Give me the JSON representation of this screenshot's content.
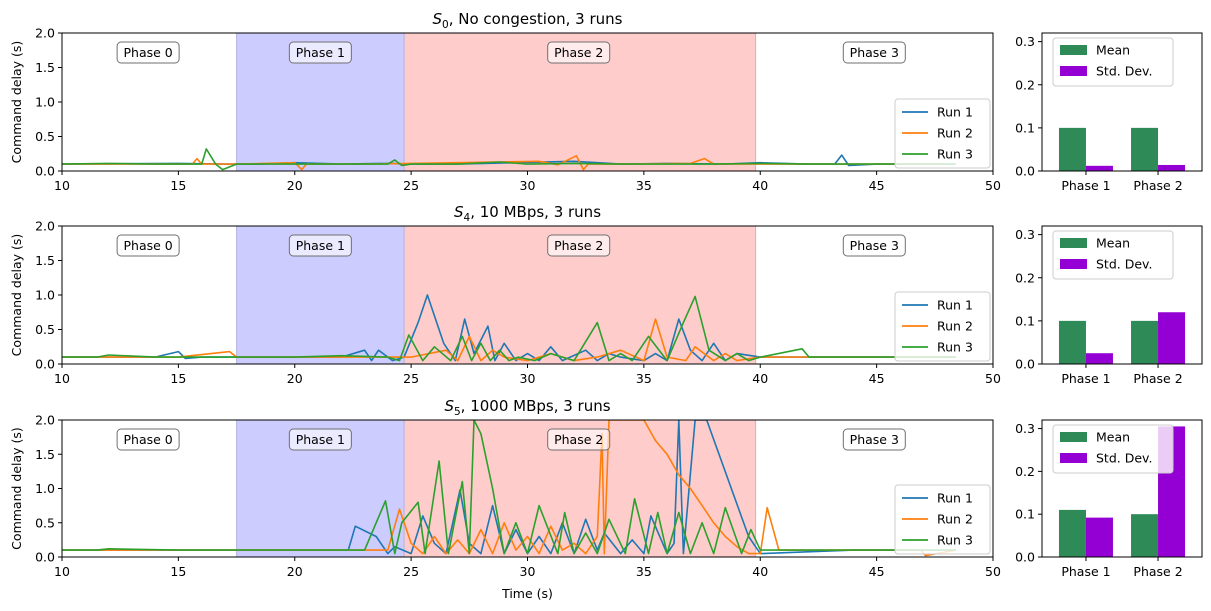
{
  "chart_data": [
    {
      "type": "line",
      "title_main": "S",
      "title_sub": "0",
      "title_rest": ", No congestion, 3 runs",
      "xlabel": "",
      "ylabel": "Command delay (s)",
      "xlim": [
        10,
        50
      ],
      "ylim": [
        0,
        2.0
      ],
      "xticks": [
        10,
        15,
        20,
        25,
        30,
        35,
        40,
        45,
        50
      ],
      "yticks": [
        0.0,
        0.5,
        1.0,
        1.5,
        2.0
      ],
      "phases": [
        {
          "label": "Phase 0",
          "start": 10,
          "end": 17.5,
          "color": "#ffffff",
          "label_x": 13.7
        },
        {
          "label": "Phase 1",
          "start": 17.5,
          "end": 24.7,
          "color": "#ccccff",
          "label_x": 21.1
        },
        {
          "label": "Phase 2",
          "start": 24.7,
          "end": 39.8,
          "color": "#ffcccc",
          "label_x": 32.2
        },
        {
          "label": "Phase 3",
          "start": 39.8,
          "end": 50,
          "color": "#ffffff",
          "label_x": 44.9
        }
      ],
      "legend_position": "lower-right",
      "series": [
        {
          "name": "Run 1",
          "color": "#1f77b4",
          "x": [
            10,
            15,
            17,
            18.5,
            20,
            22,
            24,
            25,
            27,
            29.5,
            32,
            34,
            36,
            38.5,
            40,
            42,
            43.2,
            43.5,
            43.8,
            45,
            46.5,
            48.4
          ],
          "y": [
            0.1,
            0.11,
            0.1,
            0.1,
            0.12,
            0.1,
            0.11,
            0.1,
            0.1,
            0.12,
            0.14,
            0.1,
            0.11,
            0.1,
            0.12,
            0.1,
            0.1,
            0.23,
            0.08,
            0.1,
            0.1,
            0.1
          ]
        },
        {
          "name": "Run 2",
          "color": "#ff7f0e",
          "x": [
            10,
            13,
            15.6,
            15.8,
            16,
            17.5,
            20,
            20.3,
            20.5,
            23,
            25,
            30.5,
            31.3,
            32.1,
            32.4,
            32.6,
            34,
            37,
            37.6,
            38,
            40,
            45,
            47.9
          ],
          "y": [
            0.1,
            0.1,
            0.1,
            0.18,
            0.1,
            0.1,
            0.12,
            0.02,
            0.1,
            0.1,
            0.11,
            0.14,
            0.09,
            0.22,
            0.02,
            0.1,
            0.1,
            0.11,
            0.18,
            0.1,
            0.1,
            0.1,
            0.1
          ]
        },
        {
          "name": "Run 3",
          "color": "#2ca02c",
          "x": [
            10,
            12,
            14,
            16,
            16.2,
            16.6,
            16.9,
            17.5,
            20,
            22,
            24,
            24.3,
            24.6,
            25,
            27,
            28.8,
            30,
            32,
            34,
            36,
            38,
            40,
            42,
            44,
            46,
            48.4
          ],
          "y": [
            0.1,
            0.11,
            0.1,
            0.1,
            0.32,
            0.1,
            0.02,
            0.1,
            0.1,
            0.1,
            0.1,
            0.16,
            0.08,
            0.1,
            0.1,
            0.13,
            0.1,
            0.11,
            0.1,
            0.1,
            0.1,
            0.11,
            0.1,
            0.1,
            0.1,
            0.1
          ]
        }
      ]
    },
    {
      "type": "line",
      "title_main": "S",
      "title_sub": "4",
      "title_rest": ", 10 MBps, 3 runs",
      "xlabel": "",
      "ylabel": "Command delay (s)",
      "xlim": [
        10,
        50
      ],
      "ylim": [
        0,
        2.0
      ],
      "xticks": [
        10,
        15,
        20,
        25,
        30,
        35,
        40,
        45,
        50
      ],
      "yticks": [
        0.0,
        0.5,
        1.0,
        1.5,
        2.0
      ],
      "phases": [
        {
          "label": "Phase 0",
          "start": 10,
          "end": 17.5,
          "color": "#ffffff",
          "label_x": 13.7
        },
        {
          "label": "Phase 1",
          "start": 17.5,
          "end": 24.7,
          "color": "#ccccff",
          "label_x": 21.1
        },
        {
          "label": "Phase 2",
          "start": 24.7,
          "end": 39.8,
          "color": "#ffcccc",
          "label_x": 32.2
        },
        {
          "label": "Phase 3",
          "start": 39.8,
          "end": 50,
          "color": "#ffffff",
          "label_x": 44.9
        }
      ],
      "legend_position": "lower-right",
      "series": [
        {
          "name": "Run 1",
          "color": "#1f77b4",
          "x": [
            10,
            14,
            15,
            15.3,
            16,
            18,
            22,
            23,
            23.3,
            23.6,
            24.2,
            24.7,
            25.3,
            25.7,
            26.4,
            26.9,
            27.3,
            27.7,
            28.3,
            28.6,
            29,
            29.5,
            30,
            30.5,
            31,
            31.5,
            32.5,
            33,
            33.5,
            34,
            35,
            35.5,
            36,
            36.5,
            37,
            37.5,
            38,
            38.5,
            39,
            40,
            44,
            48.4
          ],
          "y": [
            0.1,
            0.1,
            0.18,
            0.08,
            0.1,
            0.1,
            0.1,
            0.2,
            0.05,
            0.2,
            0.05,
            0.1,
            0.6,
            1.0,
            0.3,
            0.05,
            0.65,
            0.15,
            0.55,
            0.05,
            0.3,
            0.05,
            0.15,
            0.05,
            0.25,
            0.05,
            0.2,
            0.05,
            0.15,
            0.1,
            0.05,
            0.15,
            0.05,
            0.65,
            0.2,
            0.05,
            0.3,
            0.05,
            0.15,
            0.1,
            0.1,
            0.1
          ]
        },
        {
          "name": "Run 2",
          "color": "#ff7f0e",
          "x": [
            10,
            15,
            17.2,
            17.5,
            20,
            22,
            24,
            25,
            26.5,
            27,
            27.5,
            28,
            28.5,
            29,
            30,
            31,
            32,
            33,
            34,
            35,
            35.5,
            36,
            36.8,
            37.2,
            38,
            38.5,
            39,
            40,
            44,
            48.4
          ],
          "y": [
            0.1,
            0.1,
            0.18,
            0.1,
            0.1,
            0.1,
            0.1,
            0.1,
            0.2,
            0.05,
            0.4,
            0.05,
            0.2,
            0.1,
            0.05,
            0.15,
            0.05,
            0.1,
            0.2,
            0.05,
            0.65,
            0.1,
            0.05,
            0.25,
            0.05,
            0.15,
            0.05,
            0.1,
            0.1,
            0.1
          ]
        },
        {
          "name": "Run 3",
          "color": "#2ca02c",
          "x": [
            10,
            11.5,
            12,
            14,
            17.5,
            20,
            22,
            24,
            24.5,
            24.9,
            25.5,
            26,
            26.7,
            27.2,
            27.6,
            28,
            28.4,
            28.8,
            29.2,
            29.6,
            30.3,
            31,
            32,
            33,
            33.5,
            34,
            34.5,
            35.2,
            36,
            36.7,
            37.2,
            37.8,
            38.5,
            39,
            39.5,
            40,
            41.8,
            42.1,
            44,
            48.4
          ],
          "y": [
            0.1,
            0.1,
            0.13,
            0.1,
            0.1,
            0.1,
            0.12,
            0.1,
            0.05,
            0.42,
            0.05,
            0.25,
            0.05,
            0.4,
            0.05,
            0.3,
            0.05,
            0.2,
            0.05,
            0.1,
            0.05,
            0.15,
            0.05,
            0.6,
            0.05,
            0.15,
            0.05,
            0.4,
            0.05,
            0.6,
            0.98,
            0.2,
            0.05,
            0.15,
            0.05,
            0.1,
            0.22,
            0.1,
            0.1,
            0.1
          ]
        }
      ]
    },
    {
      "type": "line",
      "title_main": "S",
      "title_sub": "5",
      "title_rest": ", 1000 MBps, 3 runs",
      "xlabel": "Time (s)",
      "ylabel": "Command delay (s)",
      "xlim": [
        10,
        50
      ],
      "ylim": [
        0,
        2.0
      ],
      "xticks": [
        10,
        15,
        20,
        25,
        30,
        35,
        40,
        45,
        50
      ],
      "yticks": [
        0.0,
        0.5,
        1.0,
        1.5,
        2.0
      ],
      "phases": [
        {
          "label": "Phase 0",
          "start": 10,
          "end": 17.5,
          "color": "#ffffff",
          "label_x": 13.7
        },
        {
          "label": "Phase 1",
          "start": 17.5,
          "end": 24.7,
          "color": "#ccccff",
          "label_x": 21.1
        },
        {
          "label": "Phase 2",
          "start": 24.7,
          "end": 39.8,
          "color": "#ffcccc",
          "label_x": 32.2
        },
        {
          "label": "Phase 3",
          "start": 39.8,
          "end": 50,
          "color": "#ffffff",
          "label_x": 44.9
        }
      ],
      "legend_position": "lower-right",
      "series": [
        {
          "name": "Run 1",
          "color": "#1f77b4",
          "x": [
            10,
            15,
            20,
            22.3,
            22.6,
            23.5,
            24,
            24.3,
            25,
            25.5,
            26,
            26.5,
            27.1,
            27.5,
            28,
            28.5,
            29,
            29.5,
            30,
            30.5,
            31,
            31.5,
            32,
            32.5,
            33,
            33.3,
            34,
            34.5,
            35,
            35.3,
            36,
            36.3,
            36.5,
            36.7,
            37.2,
            37.7,
            39.5,
            40,
            44,
            48.4
          ],
          "y": [
            0.1,
            0.1,
            0.1,
            0.1,
            0.45,
            0.3,
            0.05,
            0.15,
            0.05,
            0.6,
            0.2,
            0.05,
            0.98,
            0.2,
            0.05,
            0.75,
            0.05,
            0.4,
            0.05,
            0.3,
            0.05,
            0.5,
            0.05,
            0.55,
            0.1,
            0.35,
            0.05,
            0.25,
            0.05,
            0.6,
            0.05,
            0.2,
            2.0,
            0.05,
            2.0,
            2.0,
            0.3,
            0.05,
            0.1,
            0.1
          ]
        },
        {
          "name": "Run 2",
          "color": "#ff7f0e",
          "x": [
            10,
            15,
            20,
            24,
            24.5,
            25,
            25.5,
            26,
            26.5,
            27,
            27.5,
            28,
            28.5,
            29,
            29.5,
            30,
            30.5,
            31,
            31.5,
            32,
            32.5,
            33,
            33.2,
            33.3,
            33.5,
            34,
            34.5,
            35,
            35.5,
            36,
            36.5,
            37,
            37.5,
            38,
            38.5,
            39,
            39.5,
            40,
            40.3,
            40.8,
            44,
            46.9,
            47.1,
            48.4
          ],
          "y": [
            0.1,
            0.1,
            0.1,
            0.1,
            0.7,
            0.2,
            0.05,
            0.3,
            0.05,
            0.25,
            0.05,
            0.4,
            0.05,
            0.5,
            0.1,
            0.3,
            0.05,
            0.45,
            0.1,
            0.2,
            0.05,
            0.3,
            1.8,
            0.05,
            2.0,
            2.0,
            2.0,
            2.0,
            1.7,
            1.5,
            1.2,
            1.0,
            0.75,
            0.5,
            0.3,
            0.15,
            0.05,
            0.05,
            0.72,
            0.1,
            0.1,
            0.1,
            0.02,
            0.1
          ]
        },
        {
          "name": "Run 3",
          "color": "#2ca02c",
          "x": [
            10,
            11.5,
            12,
            15,
            20,
            23,
            23.9,
            24.3,
            24.6,
            25.3,
            25.6,
            26.2,
            26.6,
            27.2,
            27.5,
            27.7,
            28,
            28.5,
            29,
            29.5,
            30,
            30.5,
            31.3,
            31.6,
            32,
            32.5,
            33,
            33.5,
            34.2,
            34.6,
            35.2,
            35.6,
            36,
            36.5,
            37,
            37.5,
            38,
            38.5,
            39.2,
            39.6,
            40,
            44,
            48.4
          ],
          "y": [
            0.1,
            0.1,
            0.12,
            0.1,
            0.1,
            0.1,
            0.82,
            0.05,
            0.5,
            0.8,
            0.05,
            1.4,
            0.05,
            1.1,
            0.05,
            2.0,
            1.8,
            1.0,
            0.05,
            0.5,
            0.05,
            0.75,
            0.05,
            0.65,
            0.05,
            0.35,
            0.05,
            0.55,
            0.05,
            0.85,
            0.05,
            0.65,
            0.05,
            0.65,
            0.05,
            0.5,
            0.05,
            0.72,
            0.05,
            0.4,
            0.1,
            0.1,
            0.1
          ]
        }
      ]
    },
    {
      "type": "bar",
      "categories": [
        "Phase 1",
        "Phase 2"
      ],
      "ylim": [
        0,
        0.32
      ],
      "yticks": [
        0.0,
        0.1,
        0.2,
        0.3
      ],
      "legend_position": "top-left",
      "series": [
        {
          "name": "Mean",
          "color": "#2e8b57",
          "values": [
            0.1,
            0.1
          ]
        },
        {
          "name": "Std. Dev.",
          "color": "#9400d3",
          "values": [
            0.012,
            0.014
          ]
        }
      ]
    },
    {
      "type": "bar",
      "categories": [
        "Phase 1",
        "Phase 2"
      ],
      "ylim": [
        0,
        0.32
      ],
      "yticks": [
        0.0,
        0.1,
        0.2,
        0.3
      ],
      "legend_position": "top-left",
      "series": [
        {
          "name": "Mean",
          "color": "#2e8b57",
          "values": [
            0.1,
            0.1
          ]
        },
        {
          "name": "Std. Dev.",
          "color": "#9400d3",
          "values": [
            0.025,
            0.12
          ]
        }
      ]
    },
    {
      "type": "bar",
      "categories": [
        "Phase 1",
        "Phase 2"
      ],
      "ylim": [
        0,
        0.32
      ],
      "yticks": [
        0.0,
        0.1,
        0.2,
        0.3
      ],
      "legend_position": "top-left",
      "series": [
        {
          "name": "Mean",
          "color": "#2e8b57",
          "values": [
            0.11,
            0.1
          ]
        },
        {
          "name": "Std. Dev.",
          "color": "#9400d3",
          "values": [
            0.092,
            0.305
          ]
        }
      ]
    }
  ]
}
